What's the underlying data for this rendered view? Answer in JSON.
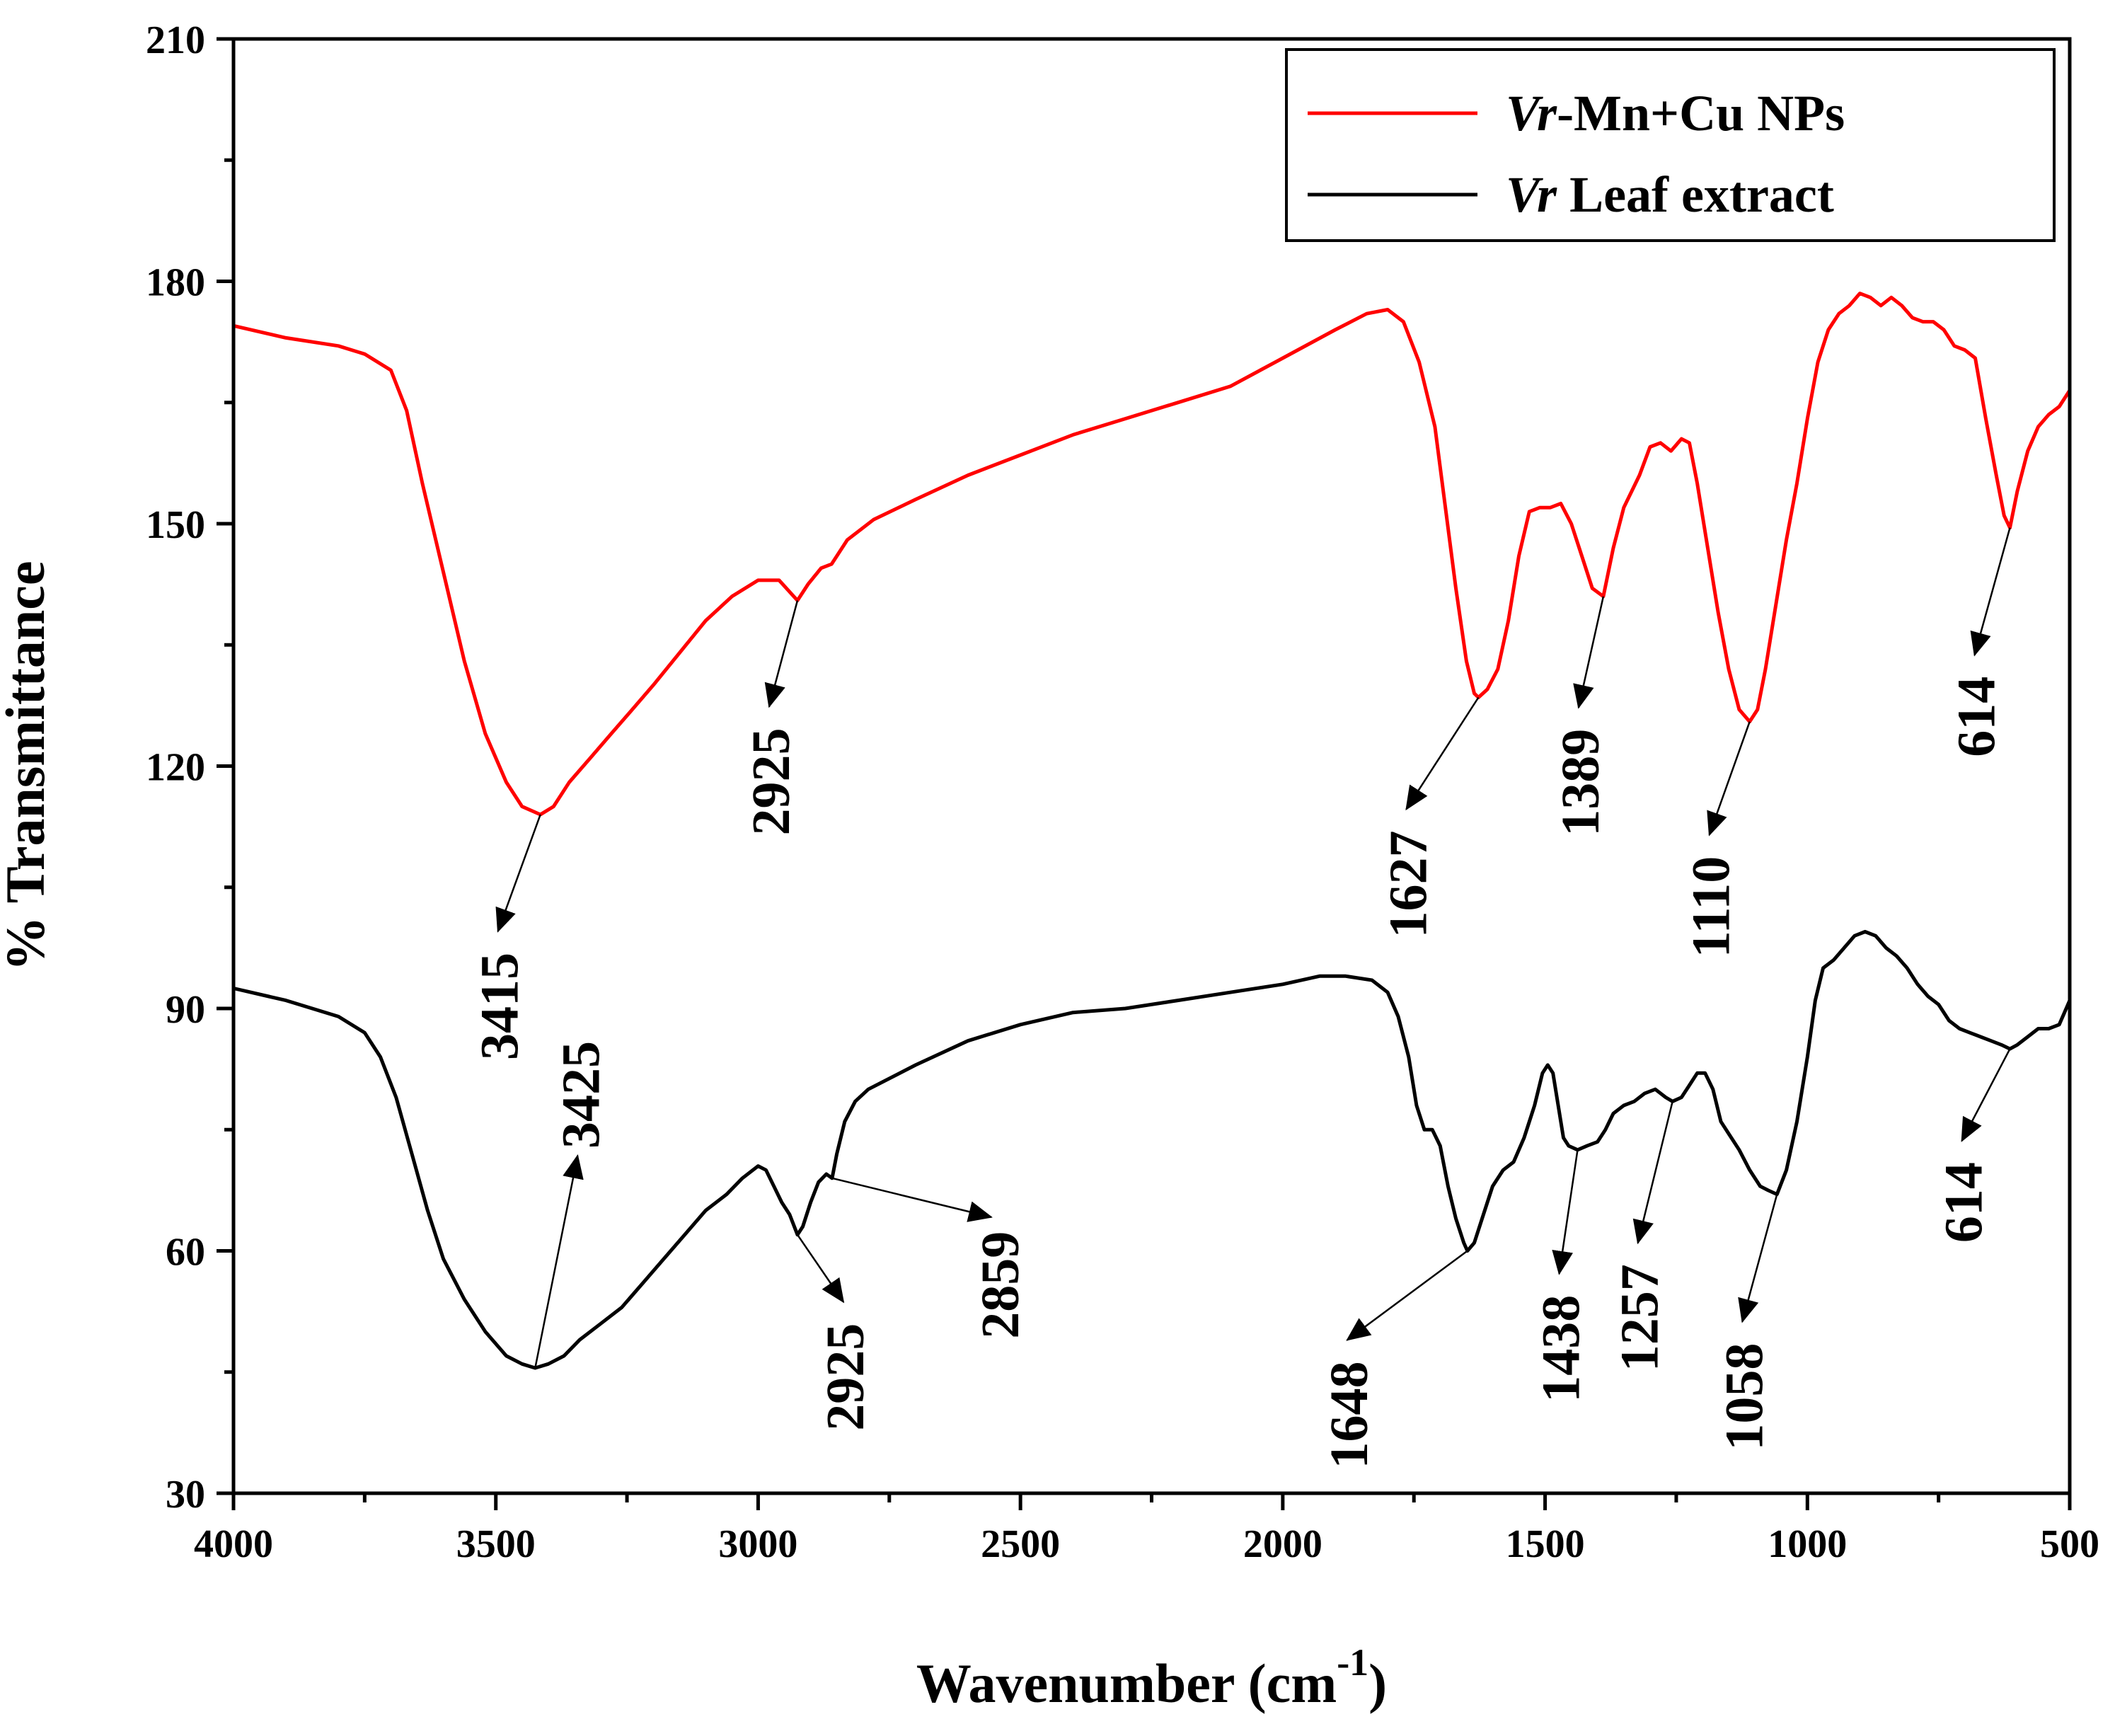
{
  "chart_data": {
    "type": "line",
    "title": "",
    "xlabel": "Wavenumber (cm",
    "xlabel_sup": "-1",
    "xlabel_close": ")",
    "ylabel": "% Transmittance",
    "xlim": [
      4000,
      500
    ],
    "ylim": [
      30,
      210
    ],
    "xticks": [
      {
        "value": 4000,
        "label": "4000"
      },
      {
        "value": 3500,
        "label": "3500"
      },
      {
        "value": 3000,
        "label": "3000"
      },
      {
        "value": 2500,
        "label": "2500"
      },
      {
        "value": 2000,
        "label": "2000"
      },
      {
        "value": 1500,
        "label": "1500"
      },
      {
        "value": 1000,
        "label": "1000"
      },
      {
        "value": 500,
        "label": "500"
      }
    ],
    "yticks": [
      {
        "value": 30,
        "label": "30"
      },
      {
        "value": 60,
        "label": "60"
      },
      {
        "value": 90,
        "label": "90"
      },
      {
        "value": 120,
        "label": "120"
      },
      {
        "value": 150,
        "label": "150"
      },
      {
        "value": 180,
        "label": "180"
      },
      {
        "value": 210,
        "label": "210"
      }
    ],
    "legend": {
      "placement": "top-right",
      "entries": [
        {
          "prefix": "Vr",
          "suffix": "-Mn+Cu NPs",
          "color": "#ff0000"
        },
        {
          "prefix": "Vr",
          "suffix": " Leaf extract",
          "color": "#000000"
        }
      ]
    },
    "series": [
      {
        "name": "Vr-Mn+Cu NPs",
        "color": "#ff0000",
        "points": [
          [
            4000,
            174.5
          ],
          [
            3900,
            173
          ],
          [
            3800,
            172
          ],
          [
            3750,
            171
          ],
          [
            3700,
            169
          ],
          [
            3670,
            164
          ],
          [
            3640,
            155
          ],
          [
            3600,
            144
          ],
          [
            3560,
            133
          ],
          [
            3520,
            124
          ],
          [
            3480,
            118
          ],
          [
            3450,
            115
          ],
          [
            3415,
            114
          ],
          [
            3390,
            115
          ],
          [
            3360,
            118
          ],
          [
            3320,
            121
          ],
          [
            3280,
            124
          ],
          [
            3240,
            127
          ],
          [
            3200,
            130
          ],
          [
            3150,
            134
          ],
          [
            3100,
            138
          ],
          [
            3050,
            141
          ],
          [
            3000,
            143
          ],
          [
            2960,
            143
          ],
          [
            2925,
            140.5
          ],
          [
            2905,
            142.5
          ],
          [
            2880,
            144.5
          ],
          [
            2860,
            145
          ],
          [
            2830,
            148
          ],
          [
            2780,
            150.5
          ],
          [
            2700,
            153
          ],
          [
            2600,
            156
          ],
          [
            2500,
            158.5
          ],
          [
            2400,
            161
          ],
          [
            2300,
            163
          ],
          [
            2200,
            165
          ],
          [
            2100,
            167
          ],
          [
            2000,
            170.5
          ],
          [
            1900,
            174
          ],
          [
            1840,
            176
          ],
          [
            1800,
            176.5
          ],
          [
            1770,
            175
          ],
          [
            1740,
            170
          ],
          [
            1710,
            162
          ],
          [
            1690,
            152
          ],
          [
            1670,
            142
          ],
          [
            1650,
            133
          ],
          [
            1635,
            129
          ],
          [
            1627,
            128.5
          ],
          [
            1610,
            129.5
          ],
          [
            1590,
            132
          ],
          [
            1570,
            138
          ],
          [
            1550,
            146
          ],
          [
            1530,
            151.5
          ],
          [
            1510,
            152
          ],
          [
            1490,
            152
          ],
          [
            1470,
            152.5
          ],
          [
            1450,
            150
          ],
          [
            1430,
            146
          ],
          [
            1410,
            142
          ],
          [
            1389,
            141
          ],
          [
            1370,
            147
          ],
          [
            1350,
            152
          ],
          [
            1320,
            156
          ],
          [
            1300,
            159.5
          ],
          [
            1280,
            160
          ],
          [
            1260,
            159
          ],
          [
            1240,
            160.5
          ],
          [
            1225,
            160
          ],
          [
            1210,
            155
          ],
          [
            1190,
            147
          ],
          [
            1170,
            139
          ],
          [
            1150,
            132
          ],
          [
            1130,
            127
          ],
          [
            1110,
            125.5
          ],
          [
            1095,
            127
          ],
          [
            1080,
            132
          ],
          [
            1060,
            140
          ],
          [
            1040,
            148
          ],
          [
            1020,
            155
          ],
          [
            1000,
            163
          ],
          [
            980,
            170
          ],
          [
            960,
            174
          ],
          [
            940,
            176
          ],
          [
            920,
            177
          ],
          [
            900,
            178.5
          ],
          [
            880,
            178
          ],
          [
            860,
            177
          ],
          [
            840,
            178
          ],
          [
            820,
            177
          ],
          [
            800,
            175.5
          ],
          [
            780,
            175
          ],
          [
            760,
            175
          ],
          [
            740,
            174
          ],
          [
            720,
            172
          ],
          [
            700,
            171.5
          ],
          [
            680,
            170.5
          ],
          [
            660,
            163
          ],
          [
            640,
            156
          ],
          [
            625,
            151
          ],
          [
            614,
            149.5
          ],
          [
            600,
            154
          ],
          [
            580,
            159
          ],
          [
            560,
            162
          ],
          [
            540,
            163.5
          ],
          [
            520,
            164.5
          ],
          [
            500,
            166.5
          ]
        ]
      },
      {
        "name": "Vr Leaf extract",
        "color": "#000000",
        "points": [
          [
            4000,
            92.5
          ],
          [
            3900,
            91
          ],
          [
            3800,
            89
          ],
          [
            3750,
            87
          ],
          [
            3720,
            84
          ],
          [
            3690,
            79
          ],
          [
            3660,
            72
          ],
          [
            3630,
            65
          ],
          [
            3600,
            59
          ],
          [
            3560,
            54
          ],
          [
            3520,
            50
          ],
          [
            3480,
            47
          ],
          [
            3450,
            46
          ],
          [
            3425,
            45.5
          ],
          [
            3400,
            46
          ],
          [
            3370,
            47
          ],
          [
            3340,
            49
          ],
          [
            3300,
            51
          ],
          [
            3260,
            53
          ],
          [
            3220,
            56
          ],
          [
            3180,
            59
          ],
          [
            3140,
            62
          ],
          [
            3100,
            65
          ],
          [
            3060,
            67
          ],
          [
            3030,
            69
          ],
          [
            3000,
            70.5
          ],
          [
            2985,
            70
          ],
          [
            2970,
            68
          ],
          [
            2955,
            66
          ],
          [
            2940,
            64.5
          ],
          [
            2925,
            62
          ],
          [
            2915,
            63
          ],
          [
            2900,
            66
          ],
          [
            2885,
            68.5
          ],
          [
            2870,
            69.5
          ],
          [
            2859,
            69
          ],
          [
            2850,
            72
          ],
          [
            2835,
            76
          ],
          [
            2815,
            78.5
          ],
          [
            2790,
            80
          ],
          [
            2700,
            83
          ],
          [
            2600,
            86
          ],
          [
            2500,
            88
          ],
          [
            2400,
            89.5
          ],
          [
            2300,
            90
          ],
          [
            2200,
            91
          ],
          [
            2100,
            92
          ],
          [
            2000,
            93
          ],
          [
            1930,
            94
          ],
          [
            1880,
            94
          ],
          [
            1830,
            93.5
          ],
          [
            1800,
            92
          ],
          [
            1780,
            89
          ],
          [
            1760,
            84
          ],
          [
            1745,
            78
          ],
          [
            1730,
            75
          ],
          [
            1715,
            75
          ],
          [
            1700,
            73
          ],
          [
            1685,
            68
          ],
          [
            1670,
            64
          ],
          [
            1655,
            61
          ],
          [
            1648,
            60
          ],
          [
            1635,
            61
          ],
          [
            1620,
            64
          ],
          [
            1600,
            68
          ],
          [
            1580,
            70
          ],
          [
            1560,
            71
          ],
          [
            1540,
            74
          ],
          [
            1520,
            78
          ],
          [
            1505,
            82
          ],
          [
            1495,
            83
          ],
          [
            1485,
            82
          ],
          [
            1475,
            78
          ],
          [
            1465,
            74
          ],
          [
            1455,
            73
          ],
          [
            1438,
            72.5
          ],
          [
            1420,
            73
          ],
          [
            1400,
            73.5
          ],
          [
            1385,
            75
          ],
          [
            1370,
            77
          ],
          [
            1350,
            78
          ],
          [
            1330,
            78.5
          ],
          [
            1310,
            79.5
          ],
          [
            1290,
            80
          ],
          [
            1270,
            79
          ],
          [
            1257,
            78.5
          ],
          [
            1240,
            79
          ],
          [
            1225,
            80.5
          ],
          [
            1210,
            82
          ],
          [
            1195,
            82
          ],
          [
            1180,
            80
          ],
          [
            1165,
            76
          ],
          [
            1150,
            74.5
          ],
          [
            1130,
            72.5
          ],
          [
            1110,
            70
          ],
          [
            1090,
            68
          ],
          [
            1075,
            67.5
          ],
          [
            1058,
            67
          ],
          [
            1040,
            70
          ],
          [
            1020,
            76
          ],
          [
            1000,
            84
          ],
          [
            985,
            91
          ],
          [
            970,
            95
          ],
          [
            950,
            96
          ],
          [
            930,
            97.5
          ],
          [
            910,
            99
          ],
          [
            890,
            99.5
          ],
          [
            870,
            99
          ],
          [
            850,
            97.5
          ],
          [
            830,
            96.5
          ],
          [
            810,
            95
          ],
          [
            790,
            93
          ],
          [
            770,
            91.5
          ],
          [
            750,
            90.5
          ],
          [
            730,
            88.5
          ],
          [
            710,
            87.5
          ],
          [
            690,
            87
          ],
          [
            670,
            86.5
          ],
          [
            650,
            86
          ],
          [
            630,
            85.5
          ],
          [
            614,
            85
          ],
          [
            600,
            85.5
          ],
          [
            580,
            86.5
          ],
          [
            560,
            87.5
          ],
          [
            540,
            87.5
          ],
          [
            520,
            88
          ],
          [
            500,
            91
          ]
        ]
      }
    ],
    "annotations": [
      {
        "label": "3415",
        "series": "Vr-Mn+Cu NPs",
        "peak": [
          3415,
          114
        ]
      },
      {
        "label": "2925",
        "series": "Vr-Mn+Cu NPs",
        "peak": [
          2925,
          140.5
        ]
      },
      {
        "label": "1627",
        "series": "Vr-Mn+Cu NPs",
        "peak": [
          1627,
          128.5
        ]
      },
      {
        "label": "1389",
        "series": "Vr-Mn+Cu NPs",
        "peak": [
          1389,
          141
        ]
      },
      {
        "label": "1110",
        "series": "Vr-Mn+Cu NPs",
        "peak": [
          1110,
          125.5
        ]
      },
      {
        "label": "614",
        "series": "Vr-Mn+Cu NPs",
        "peak": [
          614,
          149.5
        ]
      },
      {
        "label": "3425",
        "series": "Vr Leaf extract",
        "peak": [
          3425,
          45.5
        ]
      },
      {
        "label": "2925",
        "series": "Vr Leaf extract",
        "peak": [
          2925,
          62
        ]
      },
      {
        "label": "2859",
        "series": "Vr Leaf extract",
        "peak": [
          2859,
          69
        ]
      },
      {
        "label": "1648",
        "series": "Vr Leaf extract",
        "peak": [
          1648,
          60
        ]
      },
      {
        "label": "1438",
        "series": "Vr Leaf extract",
        "peak": [
          1438,
          72.5
        ]
      },
      {
        "label": "1257",
        "series": "Vr Leaf extract",
        "peak": [
          1257,
          78.5
        ]
      },
      {
        "label": "1058",
        "series": "Vr Leaf extract",
        "peak": [
          1058,
          67
        ]
      },
      {
        "label": "614",
        "series": "Vr Leaf extract",
        "peak": [
          614,
          85
        ]
      }
    ]
  }
}
